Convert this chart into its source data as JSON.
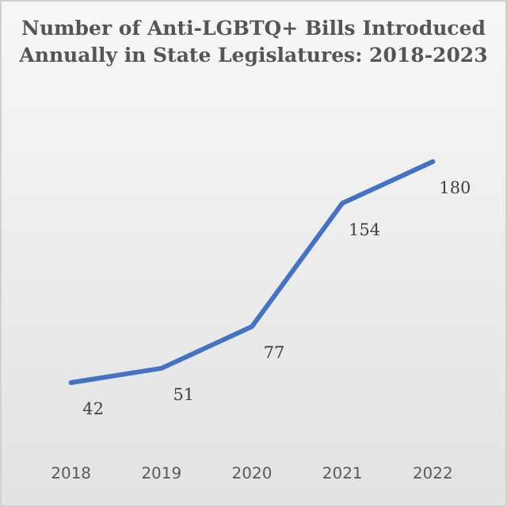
{
  "chart_data": {
    "type": "line",
    "title": "Number of Anti-LGBTQ+ Bills Introduced Annually in State Legislatures: 2018-2023",
    "categories": [
      "2018",
      "2019",
      "2020",
      "2021",
      "2022"
    ],
    "series": [
      {
        "color": "#4472c4",
        "values": [
          42,
          51,
          77,
          154,
          180
        ]
      }
    ],
    "data_labels": true,
    "tick_labels": "x",
    "marker": "none",
    "line_style": "solid"
  }
}
